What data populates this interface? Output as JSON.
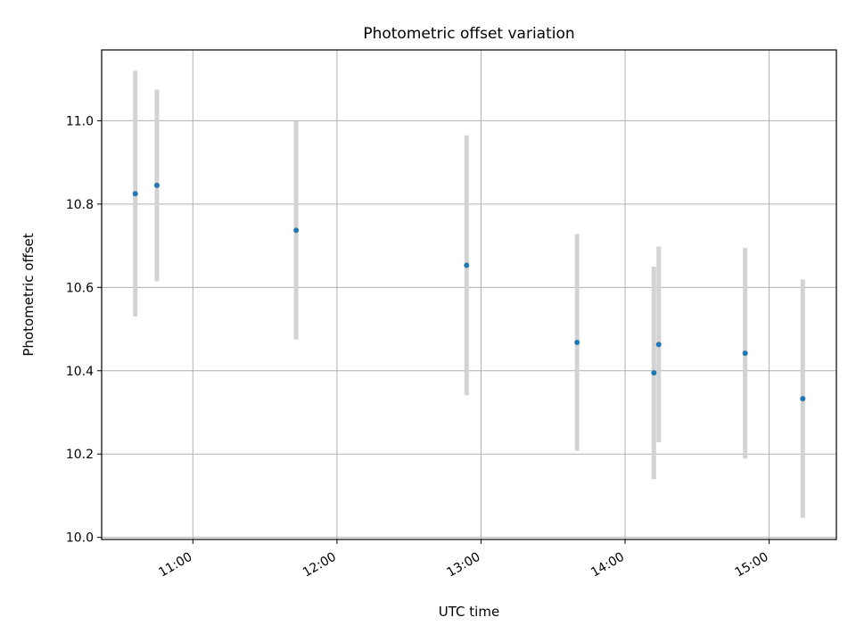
{
  "chart_data": {
    "type": "scatter",
    "title": "Photometric offset variation",
    "xlabel": "UTC time",
    "ylabel": "Photometric offset",
    "x_tick_labels": [
      "11:00",
      "12:00",
      "13:00",
      "14:00",
      "15:00"
    ],
    "y_tick_labels": [
      "10.0",
      "10.2",
      "10.4",
      "10.6",
      "10.8",
      "11.0"
    ],
    "y_ticks": [
      10.0,
      10.2,
      10.4,
      10.6,
      10.8,
      11.0
    ],
    "xlim": [
      "10:22",
      "15:28"
    ],
    "ylim": [
      9.995,
      11.17
    ],
    "grid": true,
    "series": [
      {
        "x": [
          "10:36",
          "10:45",
          "11:43",
          "12:54",
          "13:40",
          "14:12",
          "14:14",
          "14:50",
          "15:14"
        ],
        "y": [
          10.825,
          10.845,
          10.737,
          10.653,
          10.468,
          10.395,
          10.463,
          10.442,
          10.333
        ],
        "yerr": [
          0.295,
          0.23,
          0.262,
          0.312,
          0.26,
          0.255,
          0.235,
          0.253,
          0.286
        ],
        "color": "#1f77b4",
        "errorbar_color": "#d3d3d3"
      }
    ]
  }
}
